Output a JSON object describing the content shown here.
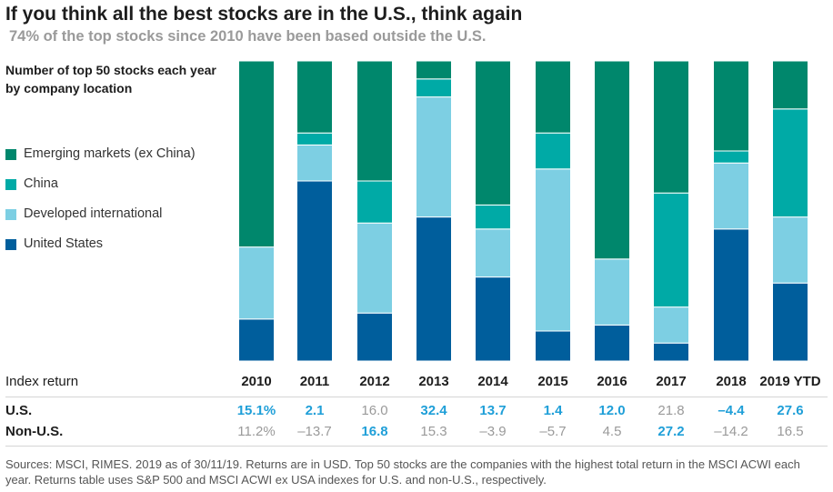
{
  "title": "If you think all the best stocks are in the U.S., think again",
  "subtitle": "74% of the top stocks since 2010 have been based outside the U.S.",
  "legend_title": "Number of top 50 stocks each year by company location",
  "legend": [
    {
      "label": "Emerging markets (ex China)",
      "color": "#00876c"
    },
    {
      "label": "China",
      "color": "#00aaa6"
    },
    {
      "label": "Developed international",
      "color": "#7dcfe3"
    },
    {
      "label": "United States",
      "color": "#005e9c"
    }
  ],
  "chart_data": {
    "type": "bar",
    "stacked": true,
    "categories": [
      "2010",
      "2011",
      "2012",
      "2013",
      "2014",
      "2015",
      "2016",
      "2017",
      "2018",
      "2019 YTD"
    ],
    "ylim": [
      0,
      50
    ],
    "series": [
      {
        "name": "United States",
        "color": "#005e9c",
        "values": [
          7,
          30,
          8,
          24,
          14,
          5,
          6,
          3,
          22,
          13
        ]
      },
      {
        "name": "Developed international",
        "color": "#7dcfe3",
        "values": [
          12,
          6,
          15,
          20,
          8,
          27,
          11,
          6,
          11,
          11
        ]
      },
      {
        "name": "China",
        "color": "#00aaa6",
        "values": [
          0,
          2,
          7,
          3,
          4,
          6,
          0,
          19,
          2,
          18
        ]
      },
      {
        "name": "Emerging markets (ex China)",
        "color": "#00876c",
        "values": [
          31,
          12,
          20,
          3,
          24,
          12,
          33,
          22,
          15,
          8
        ]
      }
    ]
  },
  "table": {
    "header_label": "Index return",
    "us_label": "U.S.",
    "nonus_label": "Non-U.S.",
    "us": [
      {
        "text": "15.1%",
        "hi": true
      },
      {
        "text": "2.1",
        "hi": true
      },
      {
        "text": "16.0",
        "hi": false
      },
      {
        "text": "32.4",
        "hi": true
      },
      {
        "text": "13.7",
        "hi": true
      },
      {
        "text": "1.4",
        "hi": true
      },
      {
        "text": "12.0",
        "hi": true
      },
      {
        "text": "21.8",
        "hi": false
      },
      {
        "text": "–4.4",
        "hi": true
      },
      {
        "text": "27.6",
        "hi": true
      }
    ],
    "nonus": [
      {
        "text": "11.2%",
        "hi": false
      },
      {
        "text": "–13.7",
        "hi": false
      },
      {
        "text": "16.8",
        "hi": true
      },
      {
        "text": "15.3",
        "hi": false
      },
      {
        "text": "–3.9",
        "hi": false
      },
      {
        "text": "–5.7",
        "hi": false
      },
      {
        "text": "4.5",
        "hi": false
      },
      {
        "text": "27.2",
        "hi": true
      },
      {
        "text": "–14.2",
        "hi": false
      },
      {
        "text": "16.5",
        "hi": false
      }
    ]
  },
  "source": "Sources: MSCI, RIMES. 2019 as of 30/11/19. Returns are in USD. Top 50 stocks are the companies with the highest total return in the MSCI ACWI each year. Returns table uses S&P 500 and MSCI ACWI ex USA indexes for U.S. and non-U.S., respectively."
}
